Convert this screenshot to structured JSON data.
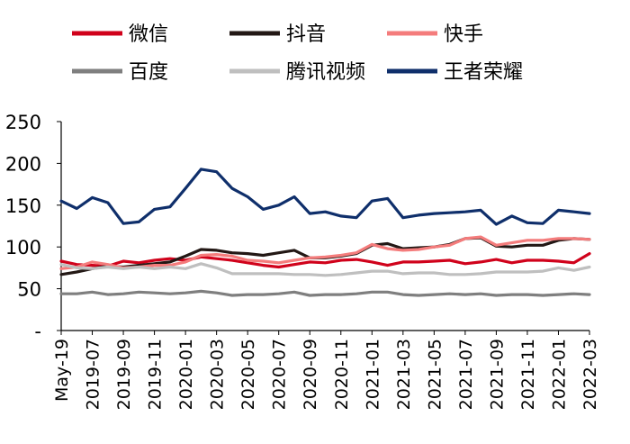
{
  "chart_data": {
    "type": "line",
    "title": "",
    "xlabel": "",
    "ylabel": "",
    "ylim": [
      0,
      250
    ],
    "yticks": [
      0,
      50,
      100,
      150,
      200,
      250
    ],
    "ytick_labels": [
      "-",
      "50",
      "100",
      "150",
      "200",
      "250"
    ],
    "grid": false,
    "legend_position": "top",
    "x": [
      "May-19",
      "2019-06",
      "2019-07",
      "2019-08",
      "2019-09",
      "2019-10",
      "2019-11",
      "2019-12",
      "2020-01",
      "2020-02",
      "2020-03",
      "2020-04",
      "2020-05",
      "2020-06",
      "2020-07",
      "2020-08",
      "2020-09",
      "2020-10",
      "2020-11",
      "2020-12",
      "2021-01",
      "2021-02",
      "2021-03",
      "2021-04",
      "2021-05",
      "2021-06",
      "2021-07",
      "2021-08",
      "2021-09",
      "2021-10",
      "2021-11",
      "2021-12",
      "2022-01",
      "2022-02",
      "2022-03"
    ],
    "xtick_labels": [
      "May-19",
      "2019-07",
      "2019-09",
      "2019-11",
      "2020-01",
      "2020-03",
      "2020-05",
      "2020-07",
      "2020-09",
      "2020-11",
      "2021-01",
      "2021-03",
      "2021-05",
      "2021-07",
      "2021-09",
      "2021-11",
      "2022-01",
      "2022-03"
    ],
    "series": [
      {
        "name": "微信",
        "color": "#d0021b",
        "values": [
          83,
          79,
          78,
          77,
          83,
          81,
          84,
          86,
          84,
          88,
          86,
          84,
          81,
          78,
          76,
          79,
          82,
          81,
          84,
          85,
          82,
          78,
          82,
          82,
          83,
          84,
          80,
          82,
          85,
          81,
          84,
          84,
          83,
          81,
          92
        ]
      },
      {
        "name": "抖音",
        "color": "#231815",
        "values": [
          67,
          70,
          74,
          77,
          76,
          78,
          80,
          82,
          89,
          97,
          96,
          93,
          92,
          90,
          93,
          96,
          87,
          87,
          89,
          92,
          102,
          104,
          98,
          99,
          100,
          103,
          110,
          111,
          101,
          100,
          102,
          102,
          108,
          110,
          109
        ]
      },
      {
        "name": "快手",
        "color": "#f47c7c",
        "values": [
          74,
          76,
          82,
          79,
          75,
          76,
          78,
          78,
          82,
          90,
          91,
          89,
          84,
          83,
          81,
          84,
          87,
          88,
          90,
          93,
          103,
          98,
          96,
          97,
          100,
          102,
          110,
          112,
          102,
          105,
          108,
          108,
          110,
          110,
          109
        ]
      },
      {
        "name": "百度",
        "color": "#7f7f7f",
        "values": [
          44,
          44,
          46,
          43,
          44,
          46,
          45,
          44,
          45,
          47,
          45,
          42,
          43,
          43,
          44,
          46,
          42,
          43,
          43,
          44,
          46,
          46,
          43,
          42,
          43,
          44,
          43,
          44,
          42,
          43,
          43,
          42,
          43,
          44,
          43
        ]
      },
      {
        "name": "腾讯视频",
        "color": "#bfbfbf",
        "values": [
          79,
          75,
          74,
          76,
          74,
          76,
          74,
          76,
          74,
          80,
          75,
          68,
          68,
          68,
          68,
          67,
          67,
          66,
          67,
          69,
          71,
          71,
          68,
          69,
          69,
          67,
          67,
          68,
          70,
          70,
          70,
          71,
          75,
          72,
          76
        ]
      },
      {
        "name": "王者荣耀",
        "color": "#0f2f6b",
        "values": [
          155,
          146,
          159,
          153,
          128,
          130,
          145,
          148,
          170,
          193,
          190,
          170,
          160,
          145,
          150,
          160,
          140,
          142,
          137,
          135,
          155,
          158,
          135,
          138,
          140,
          141,
          142,
          144,
          127,
          137,
          129,
          128,
          144,
          142,
          140
        ]
      }
    ]
  }
}
